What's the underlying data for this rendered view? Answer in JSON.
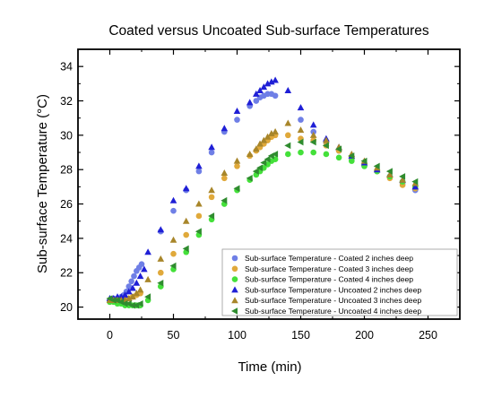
{
  "chart_data": {
    "type": "scatter",
    "title": "Coated versus Uncoated Sub-surface Temperatures",
    "xlabel": "Time (min)",
    "ylabel": "Sub-surface Temperature (°C)",
    "xlim": [
      -25,
      275
    ],
    "ylim": [
      19.3,
      35
    ],
    "x_ticks": [
      0,
      50,
      100,
      150,
      200,
      250
    ],
    "y_ticks": [
      20,
      22,
      24,
      26,
      28,
      30,
      32,
      34
    ],
    "grid": false,
    "legend_position": "bottom-right",
    "series": [
      {
        "name": "Sub-surface Temperature - Coated 2 inches deep",
        "marker": "circle",
        "color": "#6f7fe6",
        "points": [
          [
            0,
            20.4
          ],
          [
            3,
            20.5
          ],
          [
            6,
            20.5
          ],
          [
            9,
            20.6
          ],
          [
            11,
            20.7
          ],
          [
            13,
            20.9
          ],
          [
            15,
            21.2
          ],
          [
            17,
            21.5
          ],
          [
            19,
            21.8
          ],
          [
            21,
            22.1
          ],
          [
            23,
            22.3
          ],
          [
            25,
            22.5
          ],
          [
            40,
            24.4
          ],
          [
            50,
            25.6
          ],
          [
            60,
            26.8
          ],
          [
            70,
            27.9
          ],
          [
            80,
            29.0
          ],
          [
            90,
            30.2
          ],
          [
            100,
            30.9
          ],
          [
            110,
            31.7
          ],
          [
            115,
            32.0
          ],
          [
            118,
            32.2
          ],
          [
            121,
            32.3
          ],
          [
            124,
            32.4
          ],
          [
            127,
            32.4
          ],
          [
            130,
            32.3
          ],
          [
            150,
            30.9
          ],
          [
            160,
            30.2
          ],
          [
            170,
            29.6
          ],
          [
            180,
            29.1
          ],
          [
            190,
            28.6
          ],
          [
            200,
            28.2
          ],
          [
            210,
            27.9
          ],
          [
            220,
            27.6
          ],
          [
            230,
            27.2
          ],
          [
            240,
            26.8
          ]
        ]
      },
      {
        "name": "Sub-surface Temperature - Coated 3 inches deep",
        "marker": "circle",
        "color": "#e0a93b",
        "points": [
          [
            0,
            20.3
          ],
          [
            3,
            20.3
          ],
          [
            6,
            20.3
          ],
          [
            9,
            20.3
          ],
          [
            12,
            20.4
          ],
          [
            15,
            20.5
          ],
          [
            18,
            20.6
          ],
          [
            21,
            20.7
          ],
          [
            24,
            20.8
          ],
          [
            40,
            22.0
          ],
          [
            50,
            23.1
          ],
          [
            60,
            24.2
          ],
          [
            70,
            25.3
          ],
          [
            80,
            26.4
          ],
          [
            90,
            27.5
          ],
          [
            100,
            28.2
          ],
          [
            110,
            28.8
          ],
          [
            115,
            29.1
          ],
          [
            118,
            29.3
          ],
          [
            121,
            29.5
          ],
          [
            124,
            29.7
          ],
          [
            127,
            29.9
          ],
          [
            130,
            30.0
          ],
          [
            140,
            30.0
          ],
          [
            150,
            29.8
          ],
          [
            160,
            29.7
          ],
          [
            170,
            29.4
          ],
          [
            180,
            29.1
          ],
          [
            190,
            28.7
          ],
          [
            200,
            28.3
          ],
          [
            210,
            27.9
          ],
          [
            220,
            27.5
          ],
          [
            230,
            27.1
          ],
          [
            240,
            26.9
          ]
        ]
      },
      {
        "name": "Sub-surface Temperature - Coated 4 inches deep",
        "marker": "circle",
        "color": "#44e03a",
        "points": [
          [
            0,
            20.3
          ],
          [
            3,
            20.3
          ],
          [
            6,
            20.2
          ],
          [
            9,
            20.2
          ],
          [
            12,
            20.1
          ],
          [
            15,
            20.1
          ],
          [
            18,
            20.1
          ],
          [
            21,
            20.1
          ],
          [
            24,
            20.1
          ],
          [
            30,
            20.4
          ],
          [
            40,
            21.2
          ],
          [
            50,
            22.2
          ],
          [
            60,
            23.2
          ],
          [
            70,
            24.2
          ],
          [
            80,
            25.1
          ],
          [
            90,
            26.0
          ],
          [
            100,
            26.8
          ],
          [
            110,
            27.4
          ],
          [
            115,
            27.7
          ],
          [
            118,
            27.9
          ],
          [
            121,
            28.1
          ],
          [
            124,
            28.3
          ],
          [
            127,
            28.5
          ],
          [
            130,
            28.6
          ],
          [
            140,
            28.9
          ],
          [
            150,
            29.0
          ],
          [
            160,
            29.0
          ],
          [
            170,
            28.9
          ],
          [
            180,
            28.7
          ],
          [
            190,
            28.5
          ],
          [
            200,
            28.2
          ],
          [
            210,
            27.9
          ],
          [
            220,
            27.6
          ],
          [
            230,
            27.3
          ],
          [
            240,
            27.0
          ]
        ]
      },
      {
        "name": "Sub-surface Temperature - Uncoated 2 inches deep",
        "marker": "triangle-up",
        "color": "#1f1fd6",
        "points": [
          [
            0,
            20.5
          ],
          [
            3,
            20.5
          ],
          [
            6,
            20.6
          ],
          [
            9,
            20.6
          ],
          [
            12,
            20.7
          ],
          [
            15,
            20.9
          ],
          [
            18,
            21.1
          ],
          [
            21,
            21.4
          ],
          [
            24,
            21.8
          ],
          [
            27,
            22.2
          ],
          [
            30,
            23.2
          ],
          [
            40,
            24.5
          ],
          [
            50,
            26.2
          ],
          [
            60,
            26.9
          ],
          [
            70,
            28.2
          ],
          [
            80,
            29.3
          ],
          [
            90,
            30.4
          ],
          [
            100,
            31.4
          ],
          [
            110,
            31.9
          ],
          [
            115,
            32.4
          ],
          [
            118,
            32.6
          ],
          [
            121,
            32.8
          ],
          [
            124,
            33.0
          ],
          [
            127,
            33.1
          ],
          [
            130,
            33.2
          ],
          [
            140,
            32.6
          ],
          [
            150,
            31.6
          ],
          [
            160,
            30.6
          ],
          [
            170,
            29.8
          ],
          [
            180,
            29.3
          ],
          [
            190,
            28.8
          ],
          [
            200,
            28.4
          ],
          [
            210,
            28.0
          ],
          [
            220,
            27.7
          ],
          [
            230,
            27.4
          ],
          [
            240,
            27.0
          ]
        ]
      },
      {
        "name": "Sub-surface Temperature - Uncoated 3 inches deep",
        "marker": "triangle-up",
        "color": "#a8862a",
        "points": [
          [
            0,
            20.4
          ],
          [
            3,
            20.4
          ],
          [
            6,
            20.4
          ],
          [
            9,
            20.4
          ],
          [
            12,
            20.4
          ],
          [
            15,
            20.5
          ],
          [
            18,
            20.6
          ],
          [
            21,
            20.8
          ],
          [
            24,
            21.0
          ],
          [
            30,
            21.6
          ],
          [
            40,
            22.8
          ],
          [
            50,
            23.9
          ],
          [
            60,
            25.0
          ],
          [
            70,
            26.0
          ],
          [
            80,
            26.8
          ],
          [
            90,
            27.8
          ],
          [
            100,
            28.5
          ],
          [
            110,
            28.9
          ],
          [
            115,
            29.2
          ],
          [
            118,
            29.5
          ],
          [
            121,
            29.7
          ],
          [
            124,
            29.9
          ],
          [
            127,
            30.1
          ],
          [
            130,
            30.2
          ],
          [
            140,
            30.7
          ],
          [
            150,
            30.3
          ],
          [
            160,
            30.0
          ],
          [
            170,
            29.7
          ],
          [
            180,
            29.3
          ],
          [
            190,
            28.9
          ],
          [
            200,
            28.5
          ],
          [
            210,
            28.1
          ],
          [
            220,
            27.7
          ],
          [
            230,
            27.4
          ],
          [
            240,
            27.2
          ]
        ]
      },
      {
        "name": "Sub-surface Temperature - Uncoated 4 inches deep",
        "marker": "triangle-left",
        "color": "#2f8c2f",
        "points": [
          [
            0,
            20.5
          ],
          [
            3,
            20.4
          ],
          [
            6,
            20.4
          ],
          [
            9,
            20.3
          ],
          [
            12,
            20.2
          ],
          [
            15,
            20.2
          ],
          [
            18,
            20.1
          ],
          [
            21,
            20.1
          ],
          [
            24,
            20.2
          ],
          [
            30,
            20.6
          ],
          [
            40,
            21.4
          ],
          [
            50,
            22.4
          ],
          [
            60,
            23.4
          ],
          [
            70,
            24.4
          ],
          [
            80,
            25.3
          ],
          [
            90,
            26.2
          ],
          [
            100,
            26.9
          ],
          [
            110,
            27.5
          ],
          [
            115,
            27.9
          ],
          [
            118,
            28.1
          ],
          [
            121,
            28.4
          ],
          [
            124,
            28.6
          ],
          [
            127,
            28.8
          ],
          [
            130,
            28.9
          ],
          [
            140,
            29.4
          ],
          [
            150,
            29.6
          ],
          [
            160,
            29.6
          ],
          [
            170,
            29.4
          ],
          [
            180,
            29.2
          ],
          [
            190,
            28.8
          ],
          [
            200,
            28.5
          ],
          [
            210,
            28.2
          ],
          [
            220,
            27.9
          ],
          [
            230,
            27.6
          ],
          [
            240,
            27.3
          ]
        ]
      }
    ]
  }
}
